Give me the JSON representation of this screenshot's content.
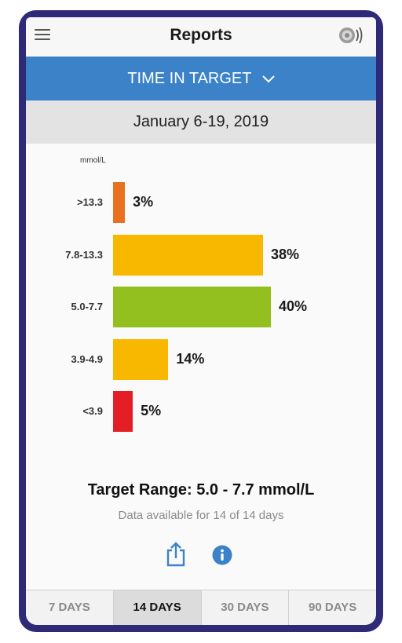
{
  "header": {
    "title": "Reports",
    "menu_icon": "hamburger-menu-icon",
    "sensor_icon": "sensor-scan-icon"
  },
  "report_selector": {
    "label": "TIME IN TARGET",
    "icon": "chevron-down-icon"
  },
  "date_range": "January 6-19, 2019",
  "colors": {
    "accent_blue": "#3b82c8",
    "very_high": "#e8701e",
    "high": "#f9b800",
    "in_target": "#93c01f",
    "low": "#f9b800",
    "very_low": "#e31e24",
    "frame": "#2e2a78"
  },
  "chart_data": {
    "type": "bar",
    "orientation": "horizontal",
    "unit": "mmol/L",
    "categories": [
      ">13.3",
      "7.8-13.3",
      "5.0-7.7",
      "3.9-4.9",
      "<3.9"
    ],
    "values": [
      3,
      38,
      40,
      14,
      5
    ],
    "value_labels": [
      "3%",
      "38%",
      "40%",
      "14%",
      "5%"
    ],
    "colors": [
      "#e8701e",
      "#f9b800",
      "#93c01f",
      "#f9b800",
      "#e31e24"
    ],
    "xlim": [
      0,
      40
    ],
    "grid": false
  },
  "summary": {
    "target_range": "Target Range: 5.0 - 7.7 mmol/L",
    "data_available": "Data available for 14 of 14 days"
  },
  "actions": {
    "share_icon": "share-icon",
    "info_icon": "info-icon"
  },
  "tabs": [
    {
      "label": "7 DAYS",
      "active": false
    },
    {
      "label": "14 DAYS",
      "active": true
    },
    {
      "label": "30 DAYS",
      "active": false
    },
    {
      "label": "90 DAYS",
      "active": false
    }
  ]
}
